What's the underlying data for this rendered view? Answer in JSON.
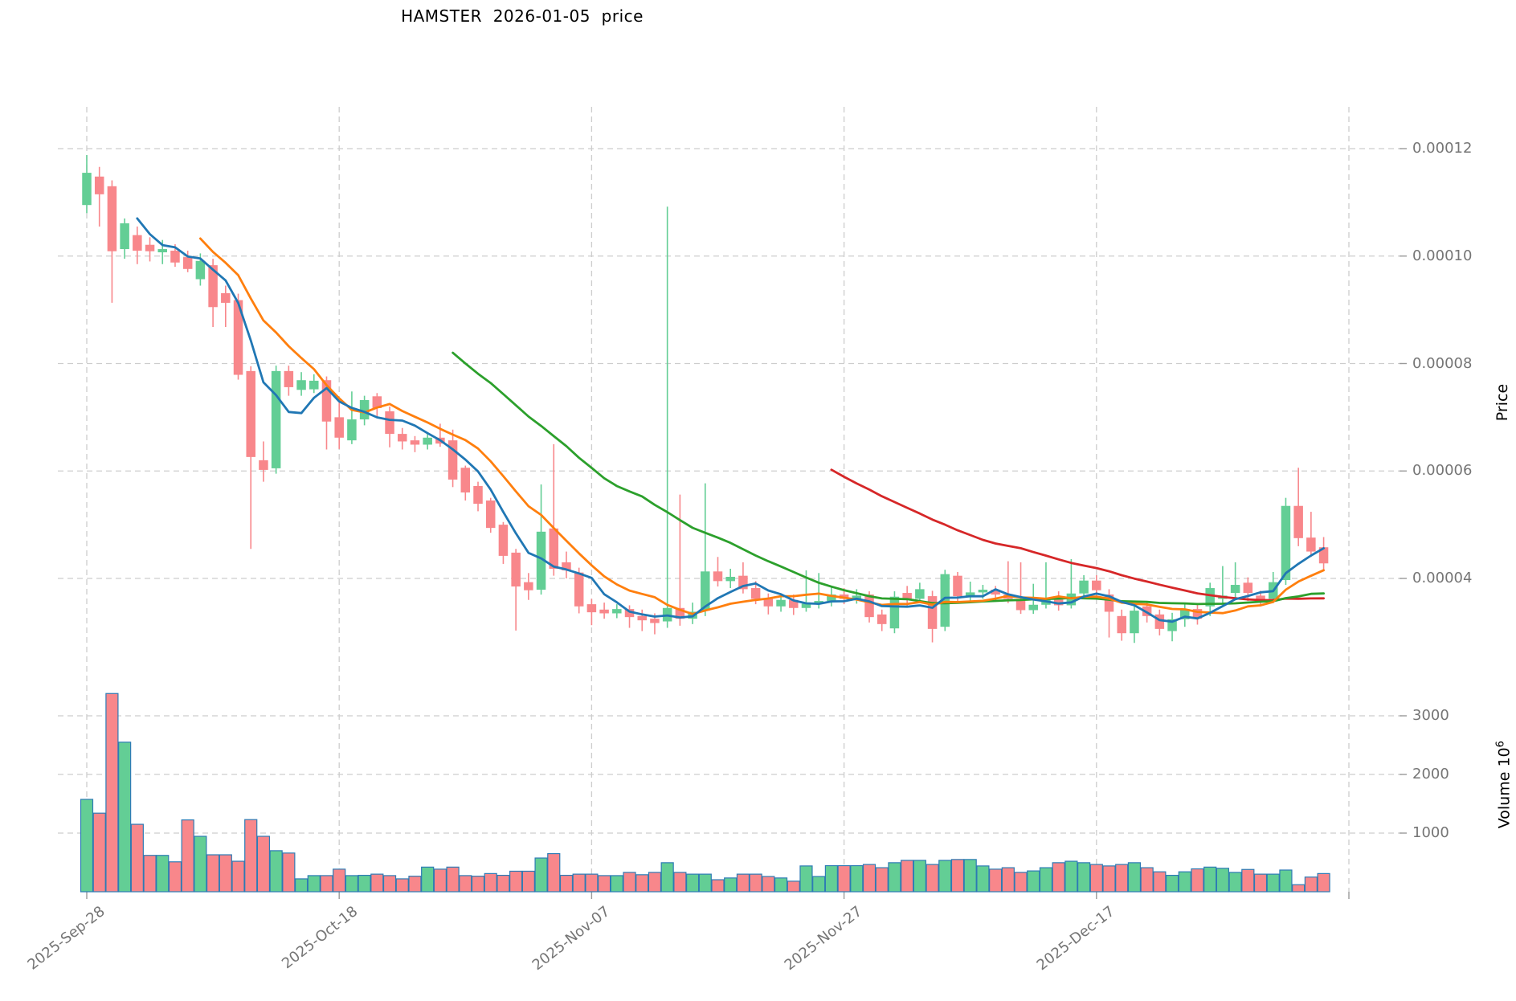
{
  "title": "HAMSTER  2026-01-05  price",
  "labels": {
    "price_axis_title": "Price",
    "volume_axis_title": "Volume  10",
    "volume_axis_exponent": "6"
  },
  "style": {
    "background": "#ffffff",
    "grid_color": "#cdcdcd",
    "tick_mark_color": "#9a9a9a",
    "tick_text_color": "#757575",
    "title_color": "#000000",
    "up_color": "#63CE95",
    "down_color": "#F8878B",
    "volume_bar_border": "#2D7BB5",
    "ma_colors": [
      "#2077B4",
      "#FF7F0E",
      "#2CA02C",
      "#D62728"
    ]
  },
  "chart_data": {
    "type": "candlestick",
    "title": "HAMSTER  2026-01-05  price",
    "ylabel": "Price",
    "ylabel_lower": "Volume 10^6",
    "grid": true,
    "legend": "none",
    "price_unit": 1e-05,
    "price_axis": {
      "tick_labels": [
        "0.00012",
        "0.00010",
        "0.00008",
        "0.00006",
        "0.00004"
      ],
      "tick_values_in_units": [
        12,
        10,
        8,
        6,
        4
      ]
    },
    "volume_axis": {
      "tick_labels": [
        "3000",
        "2000",
        "1000"
      ],
      "tick_values": [
        3000,
        2000,
        1000
      ]
    },
    "x_axis": {
      "tick_labels": [
        "2025-Sep-28",
        "2025-Oct-18",
        "2025-Nov-07",
        "2025-Nov-27",
        "2025-Dec-17"
      ],
      "tick_candle_indices": [
        0,
        20,
        40,
        60,
        80
      ],
      "unlabeled_gridline_candle_index": 100
    },
    "moving_averages": [
      {
        "window": 5,
        "color": "#2077B4"
      },
      {
        "window": 10,
        "color": "#FF7F0E"
      },
      {
        "window": 30,
        "color": "#2CA02C"
      },
      {
        "window": 60,
        "color": "#D62728"
      }
    ],
    "candles": {
      "columns": [
        "open",
        "high",
        "low",
        "close",
        "volume"
      ],
      "note": "prices in units of 0.00001 ; volume in 10^6",
      "rows": [
        [
          10.95,
          11.88,
          10.8,
          11.55,
          1575
        ],
        [
          11.48,
          11.66,
          10.55,
          11.15,
          1340
        ],
        [
          11.3,
          11.41,
          9.13,
          10.09,
          3380
        ],
        [
          10.13,
          10.7,
          9.95,
          10.61,
          2550
        ],
        [
          10.39,
          10.55,
          9.85,
          10.1,
          1150
        ],
        [
          10.21,
          10.35,
          9.9,
          10.09,
          620
        ],
        [
          10.07,
          10.3,
          9.85,
          10.13,
          620
        ],
        [
          10.1,
          10.22,
          9.8,
          9.88,
          510
        ],
        [
          9.98,
          10.1,
          9.7,
          9.76,
          1225
        ],
        [
          9.57,
          10.05,
          9.45,
          9.91,
          945
        ],
        [
          9.83,
          9.95,
          8.68,
          9.05,
          630
        ],
        [
          9.31,
          9.45,
          8.68,
          9.13,
          630
        ],
        [
          9.18,
          9.3,
          7.7,
          7.79,
          520
        ],
        [
          7.86,
          7.95,
          4.55,
          6.26,
          1230
        ],
        [
          6.2,
          6.55,
          5.8,
          6.02,
          945
        ],
        [
          6.05,
          7.96,
          5.95,
          7.86,
          700
        ],
        [
          7.86,
          7.96,
          7.4,
          7.56,
          660
        ],
        [
          7.51,
          7.84,
          7.4,
          7.69,
          220
        ],
        [
          7.52,
          7.8,
          7.45,
          7.68,
          275
        ],
        [
          7.69,
          7.76,
          6.4,
          6.92,
          275
        ],
        [
          7.0,
          7.27,
          6.41,
          6.62,
          385
        ],
        [
          6.57,
          7.48,
          6.5,
          6.96,
          275
        ],
        [
          6.96,
          7.4,
          6.85,
          7.32,
          280
        ],
        [
          7.39,
          7.45,
          7.0,
          7.17,
          300
        ],
        [
          7.11,
          7.2,
          6.44,
          6.69,
          275
        ],
        [
          6.69,
          6.8,
          6.4,
          6.55,
          220
        ],
        [
          6.57,
          6.65,
          6.35,
          6.49,
          265
        ],
        [
          6.49,
          6.72,
          6.4,
          6.62,
          420
        ],
        [
          6.62,
          6.88,
          6.45,
          6.51,
          385
        ],
        [
          6.57,
          6.77,
          5.7,
          5.84,
          420
        ],
        [
          6.06,
          6.1,
          5.45,
          5.6,
          275
        ],
        [
          5.72,
          5.8,
          5.25,
          5.39,
          265
        ],
        [
          5.45,
          5.5,
          4.85,
          4.94,
          310
        ],
        [
          5.0,
          5.05,
          4.27,
          4.42,
          280
        ],
        [
          4.48,
          4.55,
          3.03,
          3.85,
          350
        ],
        [
          3.93,
          4.1,
          3.6,
          3.78,
          350
        ],
        [
          3.79,
          5.75,
          3.7,
          4.87,
          575
        ],
        [
          4.93,
          6.5,
          4.05,
          4.18,
          650
        ],
        [
          4.3,
          4.5,
          4.0,
          4.15,
          280
        ],
        [
          4.11,
          4.2,
          3.35,
          3.48,
          300
        ],
        [
          3.52,
          3.62,
          3.13,
          3.37,
          300
        ],
        [
          3.42,
          3.55,
          3.25,
          3.35,
          275
        ],
        [
          3.35,
          3.52,
          3.26,
          3.43,
          275
        ],
        [
          3.43,
          3.5,
          3.08,
          3.28,
          330
        ],
        [
          3.3,
          3.42,
          3.02,
          3.22,
          290
        ],
        [
          3.25,
          3.35,
          2.96,
          3.17,
          330
        ],
        [
          3.2,
          10.92,
          3.08,
          3.45,
          495
        ],
        [
          3.45,
          5.56,
          3.12,
          3.25,
          330
        ],
        [
          3.25,
          3.55,
          3.15,
          3.38,
          300
        ],
        [
          3.4,
          5.77,
          3.3,
          4.13,
          300
        ],
        [
          4.13,
          4.4,
          3.85,
          3.95,
          205
        ],
        [
          3.95,
          4.18,
          3.82,
          4.03,
          235
        ],
        [
          4.05,
          4.3,
          3.72,
          3.8,
          300
        ],
        [
          3.82,
          3.95,
          3.52,
          3.62,
          300
        ],
        [
          3.62,
          3.72,
          3.33,
          3.48,
          260
        ],
        [
          3.48,
          3.72,
          3.38,
          3.6,
          235
        ],
        [
          3.6,
          3.7,
          3.32,
          3.45,
          180
        ],
        [
          3.45,
          4.15,
          3.38,
          3.53,
          440
        ],
        [
          3.53,
          4.1,
          3.44,
          3.58,
          260
        ],
        [
          3.58,
          3.86,
          3.48,
          3.7,
          445
        ],
        [
          3.7,
          3.82,
          3.52,
          3.62,
          445
        ],
        [
          3.62,
          3.8,
          3.53,
          3.68,
          445
        ],
        [
          3.7,
          3.76,
          3.18,
          3.28,
          465
        ],
        [
          3.33,
          3.42,
          3.02,
          3.15,
          410
        ],
        [
          3.07,
          3.76,
          2.98,
          3.66,
          495
        ],
        [
          3.73,
          3.86,
          3.48,
          3.6,
          535
        ],
        [
          3.62,
          3.92,
          3.54,
          3.8,
          535
        ],
        [
          3.67,
          3.77,
          2.81,
          3.06,
          465
        ],
        [
          3.1,
          4.16,
          3.02,
          4.08,
          535
        ],
        [
          4.05,
          4.12,
          3.55,
          3.67,
          550
        ],
        [
          3.67,
          3.94,
          3.58,
          3.74,
          550
        ],
        [
          3.74,
          3.88,
          3.62,
          3.79,
          440
        ],
        [
          3.79,
          3.86,
          3.58,
          3.7,
          385
        ],
        [
          3.7,
          4.32,
          3.54,
          3.62,
          410
        ],
        [
          3.62,
          4.3,
          3.34,
          3.41,
          330
        ],
        [
          3.41,
          3.9,
          3.34,
          3.51,
          355
        ],
        [
          3.51,
          4.3,
          3.44,
          3.63,
          410
        ],
        [
          3.63,
          3.76,
          3.4,
          3.5,
          495
        ],
        [
          3.5,
          4.36,
          3.44,
          3.72,
          520
        ],
        [
          3.72,
          4.06,
          3.64,
          3.96,
          495
        ],
        [
          3.96,
          4.06,
          3.68,
          3.78,
          465
        ],
        [
          3.7,
          3.8,
          2.9,
          3.38,
          440
        ],
        [
          3.3,
          3.42,
          2.84,
          2.98,
          465
        ],
        [
          2.98,
          3.52,
          2.8,
          3.4,
          495
        ],
        [
          3.48,
          3.56,
          3.18,
          3.3,
          410
        ],
        [
          3.33,
          3.42,
          2.94,
          3.06,
          340
        ],
        [
          3.02,
          3.36,
          2.83,
          3.24,
          280
        ],
        [
          3.24,
          3.52,
          3.1,
          3.43,
          340
        ],
        [
          3.43,
          3.52,
          3.14,
          3.25,
          390
        ],
        [
          3.48,
          3.92,
          3.3,
          3.82,
          420
        ],
        [
          3.62,
          4.23,
          3.54,
          3.68,
          400
        ],
        [
          3.73,
          4.3,
          3.64,
          3.88,
          330
        ],
        [
          3.92,
          4.02,
          3.58,
          3.73,
          380
        ],
        [
          3.68,
          3.77,
          3.48,
          3.6,
          300
        ],
        [
          3.62,
          4.12,
          3.54,
          3.93,
          300
        ],
        [
          3.97,
          5.5,
          3.88,
          5.35,
          370
        ],
        [
          5.35,
          6.06,
          4.6,
          4.75,
          120
        ],
        [
          4.76,
          5.24,
          4.4,
          4.5,
          250
        ],
        [
          4.58,
          4.77,
          4.15,
          4.28,
          310
        ]
      ]
    }
  }
}
